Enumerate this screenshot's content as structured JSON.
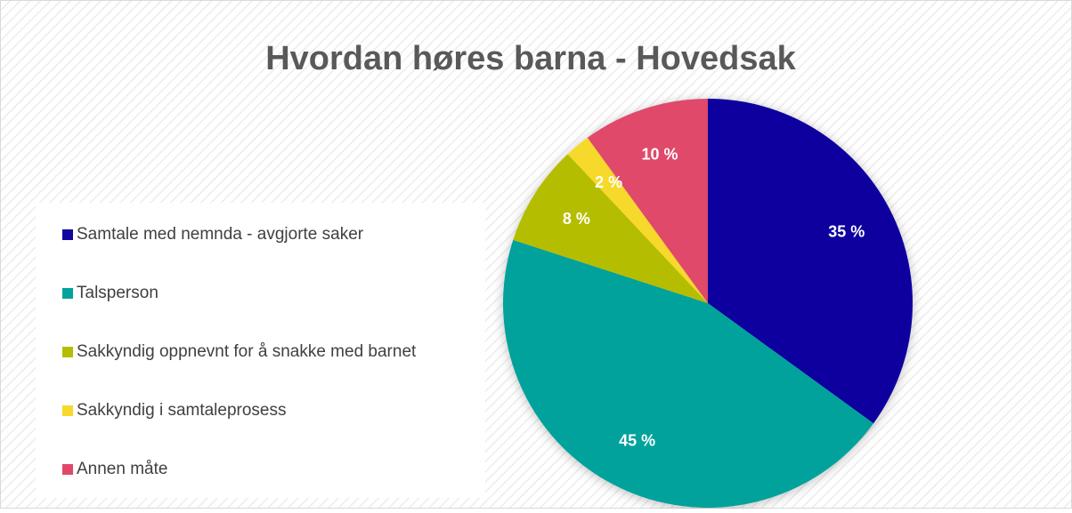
{
  "chart_data": {
    "type": "pie",
    "title": "Hvordan høres barna - Hovedsak",
    "categories": [
      "Samtale med nemnda - avgjorte saker",
      "Talsperson",
      "Sakkyndig oppnevnt for å snakke med barnet",
      "Sakkyndig i samtaleprosess",
      "Annen måte"
    ],
    "values": [
      35,
      45,
      8,
      2,
      10
    ],
    "value_labels": [
      "35 %",
      "45 %",
      "8 %",
      "2 %",
      "10 %"
    ],
    "colors": [
      "#10069f",
      "#00a29b",
      "#b5bd00",
      "#f6d92a",
      "#e0486a"
    ],
    "legend": "left"
  }
}
